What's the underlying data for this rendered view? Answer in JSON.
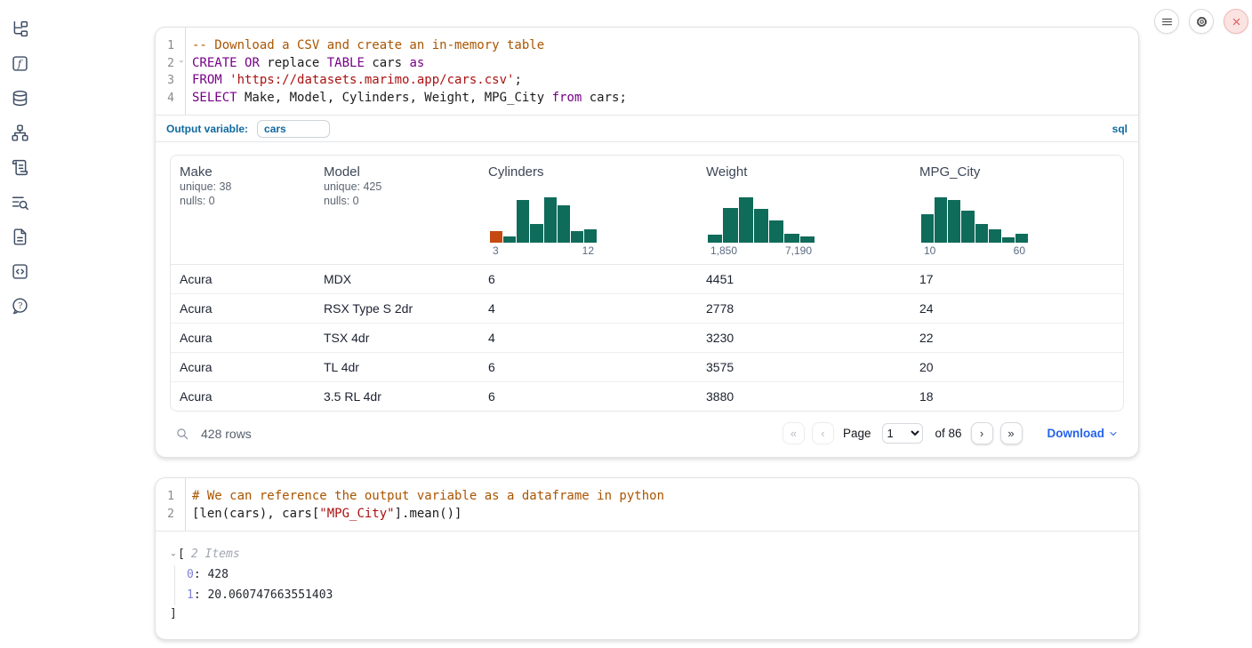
{
  "colors": {
    "histogram_bar": "#0f6b5a",
    "histogram_highlight": "#c54a12",
    "sql_keyword": "#770088",
    "code_comment": "#aa5500",
    "code_string": "#aa1111",
    "accent_blue": "#10699f",
    "link_blue": "#2563eb"
  },
  "sidebar": {
    "icons": [
      "file-tree",
      "function-square",
      "database",
      "dependency-graph",
      "scroll-text",
      "list-search",
      "file-text",
      "code-square",
      "help-circle"
    ]
  },
  "top_actions": {
    "icons": [
      "menu",
      "settings",
      "shutdown"
    ]
  },
  "sql_cell": {
    "language_badge": "sql",
    "output_variable_label": "Output variable:",
    "output_variable_value": "cars",
    "lines": [
      {
        "number": "1",
        "tokens": [
          {
            "c": "comment",
            "t": "-- Download a CSV and create an in-memory table"
          }
        ]
      },
      {
        "number": "2",
        "fold": true,
        "tokens": [
          {
            "c": "keyword",
            "t": "CREATE"
          },
          {
            "c": "plain",
            "t": " "
          },
          {
            "c": "keyword",
            "t": "OR"
          },
          {
            "c": "plain",
            "t": " replace "
          },
          {
            "c": "keyword",
            "t": "TABLE"
          },
          {
            "c": "plain",
            "t": " cars "
          },
          {
            "c": "keyword",
            "t": "as"
          }
        ]
      },
      {
        "number": "3",
        "tokens": [
          {
            "c": "keyword",
            "t": "FROM"
          },
          {
            "c": "plain",
            "t": " "
          },
          {
            "c": "string",
            "t": "'https://datasets.marimo.app/cars.csv'"
          },
          {
            "c": "plain",
            "t": ";"
          }
        ]
      },
      {
        "number": "4",
        "tokens": [
          {
            "c": "keyword",
            "t": "SELECT"
          },
          {
            "c": "plain",
            "t": " Make, Model, Cylinders, Weight, MPG_City "
          },
          {
            "c": "keyword",
            "t": "from"
          },
          {
            "c": "plain",
            "t": " cars;"
          }
        ]
      }
    ]
  },
  "table": {
    "columns": [
      {
        "name": "Make",
        "stats": [
          "unique: 38",
          "nulls: 0"
        ]
      },
      {
        "name": "Model",
        "stats": [
          "unique: 425",
          "nulls: 0"
        ]
      },
      {
        "name": "Cylinders",
        "histogram": {
          "min_label": "3",
          "max_label": "12",
          "bars": [
            0.24,
            0.13,
            0.88,
            0.39,
            0.95,
            0.78,
            0.24,
            0.28
          ],
          "highlight_first": true
        }
      },
      {
        "name": "Weight",
        "histogram": {
          "min_label": "1,850",
          "max_label": "7,190",
          "bars": [
            0.16,
            0.72,
            0.94,
            0.7,
            0.47,
            0.18,
            0.13
          ]
        }
      },
      {
        "name": "MPG_City",
        "histogram": {
          "min_label": "10",
          "max_label": "60",
          "bars": [
            0.59,
            0.94,
            0.88,
            0.66,
            0.39,
            0.28,
            0.11,
            0.19
          ]
        }
      }
    ],
    "rows": [
      [
        "Acura",
        "MDX",
        "6",
        "4451",
        "17"
      ],
      [
        "Acura",
        "RSX Type S 2dr",
        "4",
        "2778",
        "24"
      ],
      [
        "Acura",
        "TSX 4dr",
        "4",
        "3230",
        "22"
      ],
      [
        "Acura",
        "TL 4dr",
        "6",
        "3575",
        "20"
      ],
      [
        "Acura",
        "3.5 RL 4dr",
        "6",
        "3880",
        "18"
      ]
    ],
    "footer": {
      "row_count": "428 rows",
      "page_label": "Page",
      "page_value": "1",
      "total_label": "of 86",
      "download_label": "Download"
    }
  },
  "python_cell": {
    "lines": [
      {
        "number": "1",
        "tokens": [
          {
            "c": "comment",
            "t": "# We can reference the output variable as a dataframe in python"
          }
        ]
      },
      {
        "number": "2",
        "tokens": [
          {
            "c": "plain",
            "t": "[len(cars), cars["
          },
          {
            "c": "string",
            "t": "\"MPG_City\""
          },
          {
            "c": "plain",
            "t": "].mean()]"
          }
        ]
      }
    ],
    "output": {
      "open_bracket": "[",
      "items_label": "2 Items",
      "items": [
        {
          "key": "0",
          "value": "428"
        },
        {
          "key": "1",
          "value": "20.060747663551403"
        }
      ],
      "close_bracket": "]"
    }
  }
}
